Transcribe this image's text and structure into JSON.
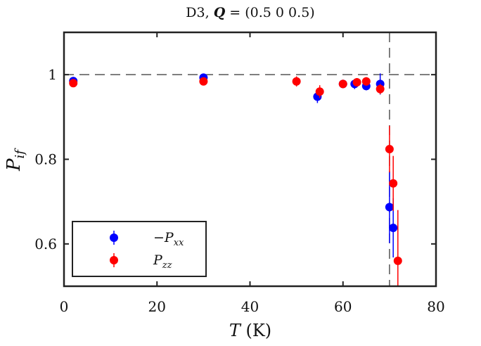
{
  "chart_data": {
    "type": "scatter",
    "title_prefix": "D3, ",
    "title_q": "Q",
    "title_rest": " = (0.5 0 0.5)",
    "xlabel_var": "T",
    "xlabel_unit": " (K)",
    "ylabel_base": "P",
    "ylabel_sub": "if",
    "xlim": [
      0,
      80
    ],
    "ylim": [
      0.5,
      1.1
    ],
    "xticks": [
      0,
      20,
      40,
      60,
      80
    ],
    "xtick_labels": [
      "0",
      "20",
      "40",
      "60",
      "80"
    ],
    "yticks": [
      0.6,
      0.8,
      1.0
    ],
    "ytick_labels": [
      "0.6",
      "0.8",
      "1"
    ],
    "reference_lines": {
      "y": 1.0,
      "x": 70
    },
    "legend_position": "bottom-left",
    "series": [
      {
        "name": "-Pxx",
        "legend_sign": "−",
        "legend_base": "P",
        "legend_sub": "xx",
        "color": "#0000ff",
        "points": [
          {
            "x": 2,
            "y": 0.985,
            "err": 0.008
          },
          {
            "x": 30,
            "y": 0.993,
            "err": 0.008
          },
          {
            "x": 54.5,
            "y": 0.948,
            "err": 0.015
          },
          {
            "x": 60,
            "y": 0.978,
            "err": 0.01
          },
          {
            "x": 62.5,
            "y": 0.978,
            "err": 0.012
          },
          {
            "x": 65,
            "y": 0.973,
            "err": 0.01
          },
          {
            "x": 68,
            "y": 0.978,
            "err": 0.025
          },
          {
            "x": 70,
            "y": 0.687,
            "err": 0.085
          },
          {
            "x": 70.8,
            "y": 0.638,
            "err": 0.07
          }
        ]
      },
      {
        "name": "Pzz",
        "legend_sign": "",
        "legend_base": "P",
        "legend_sub": "zz",
        "color": "#ff0000",
        "points": [
          {
            "x": 2,
            "y": 0.98,
            "err": 0.008
          },
          {
            "x": 30,
            "y": 0.984,
            "err": 0.008
          },
          {
            "x": 50,
            "y": 0.984,
            "err": 0.012
          },
          {
            "x": 55,
            "y": 0.96,
            "err": 0.015
          },
          {
            "x": 60,
            "y": 0.978,
            "err": 0.01
          },
          {
            "x": 63,
            "y": 0.982,
            "err": 0.01
          },
          {
            "x": 65,
            "y": 0.984,
            "err": 0.01
          },
          {
            "x": 68,
            "y": 0.966,
            "err": 0.012
          },
          {
            "x": 70,
            "y": 0.824,
            "err": 0.055
          },
          {
            "x": 70.8,
            "y": 0.743,
            "err": 0.065
          },
          {
            "x": 71.8,
            "y": 0.56,
            "err": 0.12
          }
        ]
      }
    ]
  }
}
